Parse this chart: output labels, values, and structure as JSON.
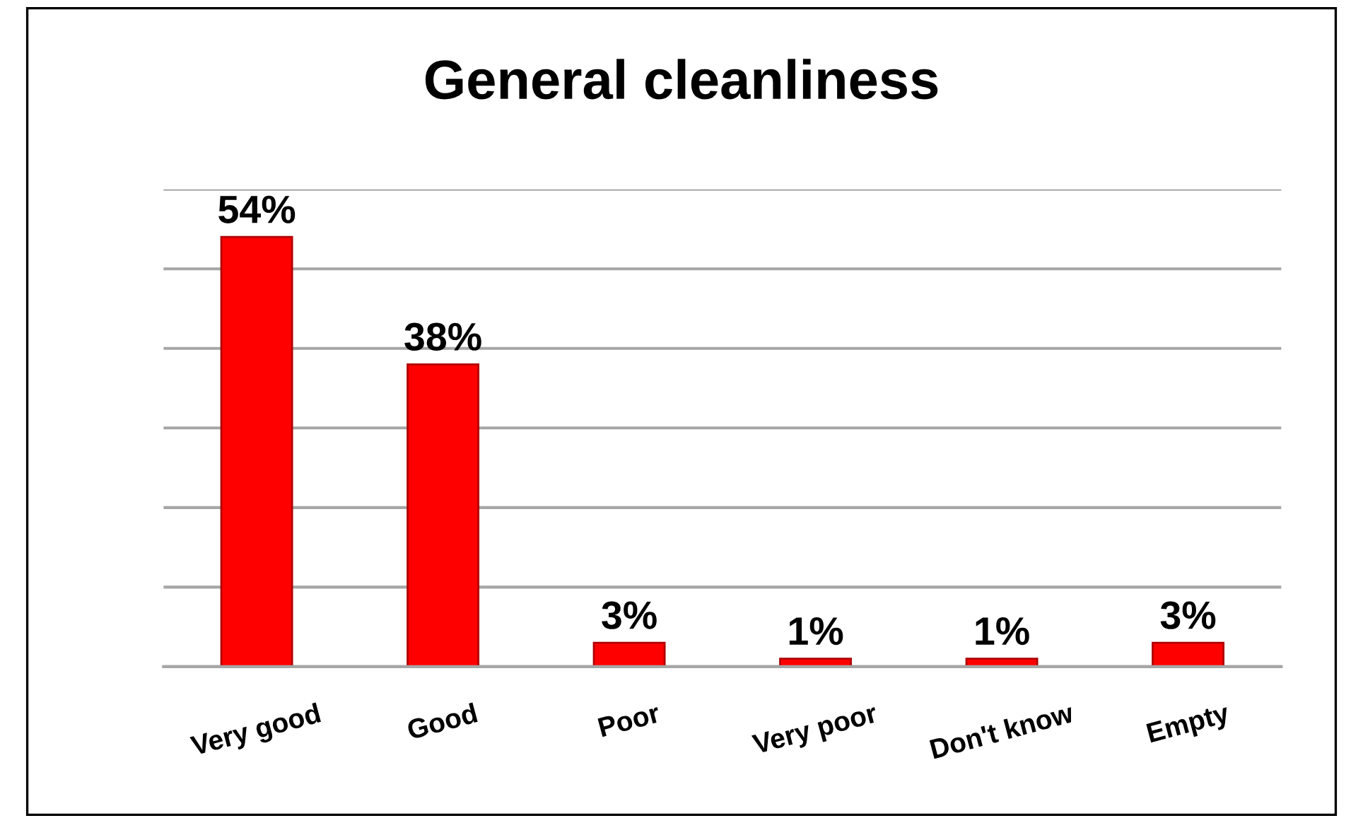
{
  "chart_data": {
    "type": "bar",
    "title": "General cleanliness",
    "categories": [
      "Very good",
      "Good",
      "Poor",
      "Very poor",
      "Don't know",
      "Empty"
    ],
    "values": [
      54,
      38,
      3,
      1,
      1,
      3
    ],
    "value_labels": [
      "54%",
      "38%",
      "3%",
      "1%",
      "1%",
      "3%"
    ],
    "color": "#ff0000",
    "ylim": [
      0,
      60
    ],
    "yticks": [
      {
        "value": 0,
        "label": null
      },
      {
        "value": 10,
        "label": null
      },
      {
        "value": 20,
        "label": null
      },
      {
        "value": 30,
        "label": null
      },
      {
        "value": 40,
        "label": null
      },
      {
        "value": 50,
        "label": null
      },
      {
        "value": 60,
        "label": null
      }
    ],
    "grid": "y"
  }
}
